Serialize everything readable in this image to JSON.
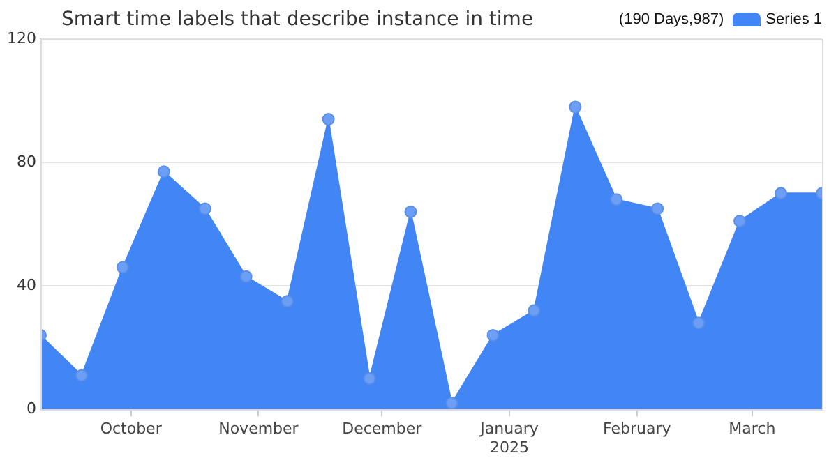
{
  "chart_data": {
    "type": "area",
    "title": "Smart time labels that describe instance in time",
    "annotations": [
      "(190 Days,987)"
    ],
    "x": [
      "2024-09-09",
      "2024-09-19",
      "2024-09-29",
      "2024-10-09",
      "2024-10-19",
      "2024-10-29",
      "2024-11-08",
      "2024-11-18",
      "2024-11-28",
      "2024-12-08",
      "2024-12-18",
      "2024-12-28",
      "2025-01-07",
      "2025-01-17",
      "2025-01-27",
      "2025-02-06",
      "2025-02-16",
      "2025-02-26",
      "2025-03-08",
      "2025-03-18"
    ],
    "series": [
      {
        "name": "Series 1",
        "color": "#4285f4",
        "values": [
          24,
          11,
          46,
          77,
          65,
          43,
          35,
          94,
          10,
          64,
          2,
          24,
          32,
          98,
          68,
          65,
          28,
          61,
          70,
          70
        ]
      }
    ],
    "xlim": [
      "2024-09-09",
      "2025-03-18"
    ],
    "xticks": [
      {
        "value": "2024-10-01",
        "label": "October"
      },
      {
        "value": "2024-11-01",
        "label": "November"
      },
      {
        "value": "2024-12-01",
        "label": "December"
      },
      {
        "value": "2025-01-01",
        "label": "January\n2025"
      },
      {
        "value": "2025-02-01",
        "label": "February"
      },
      {
        "value": "2025-03-01",
        "label": "March"
      }
    ],
    "ylim": [
      0,
      120
    ],
    "yticks": [
      0,
      40,
      80,
      120
    ],
    "grid": "y",
    "legend": "top right",
    "marker": "circle"
  }
}
